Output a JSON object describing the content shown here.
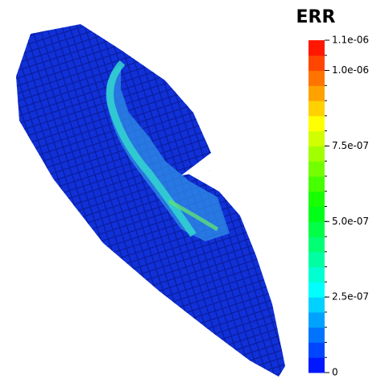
{
  "chart_data": {
    "type": "colorbar",
    "title": "ERR",
    "clim": [
      0,
      1.1e-06
    ],
    "ticks": [
      0,
      {
        "value": 2.5e-07,
        "label": "2.5e-07"
      },
      {
        "value": 5e-07,
        "label": "5.0e-07"
      },
      {
        "value": 7.5e-07,
        "label": "7.5e-07"
      },
      {
        "value": 1e-06,
        "label": "1.0e-06"
      },
      {
        "value": 1.1e-06,
        "label": "1.1e-06"
      }
    ],
    "colors": [
      "#0000ff",
      "#00ffff",
      "#00ff00",
      "#ffff00",
      "#ff0000"
    ],
    "bands": 22
  }
}
